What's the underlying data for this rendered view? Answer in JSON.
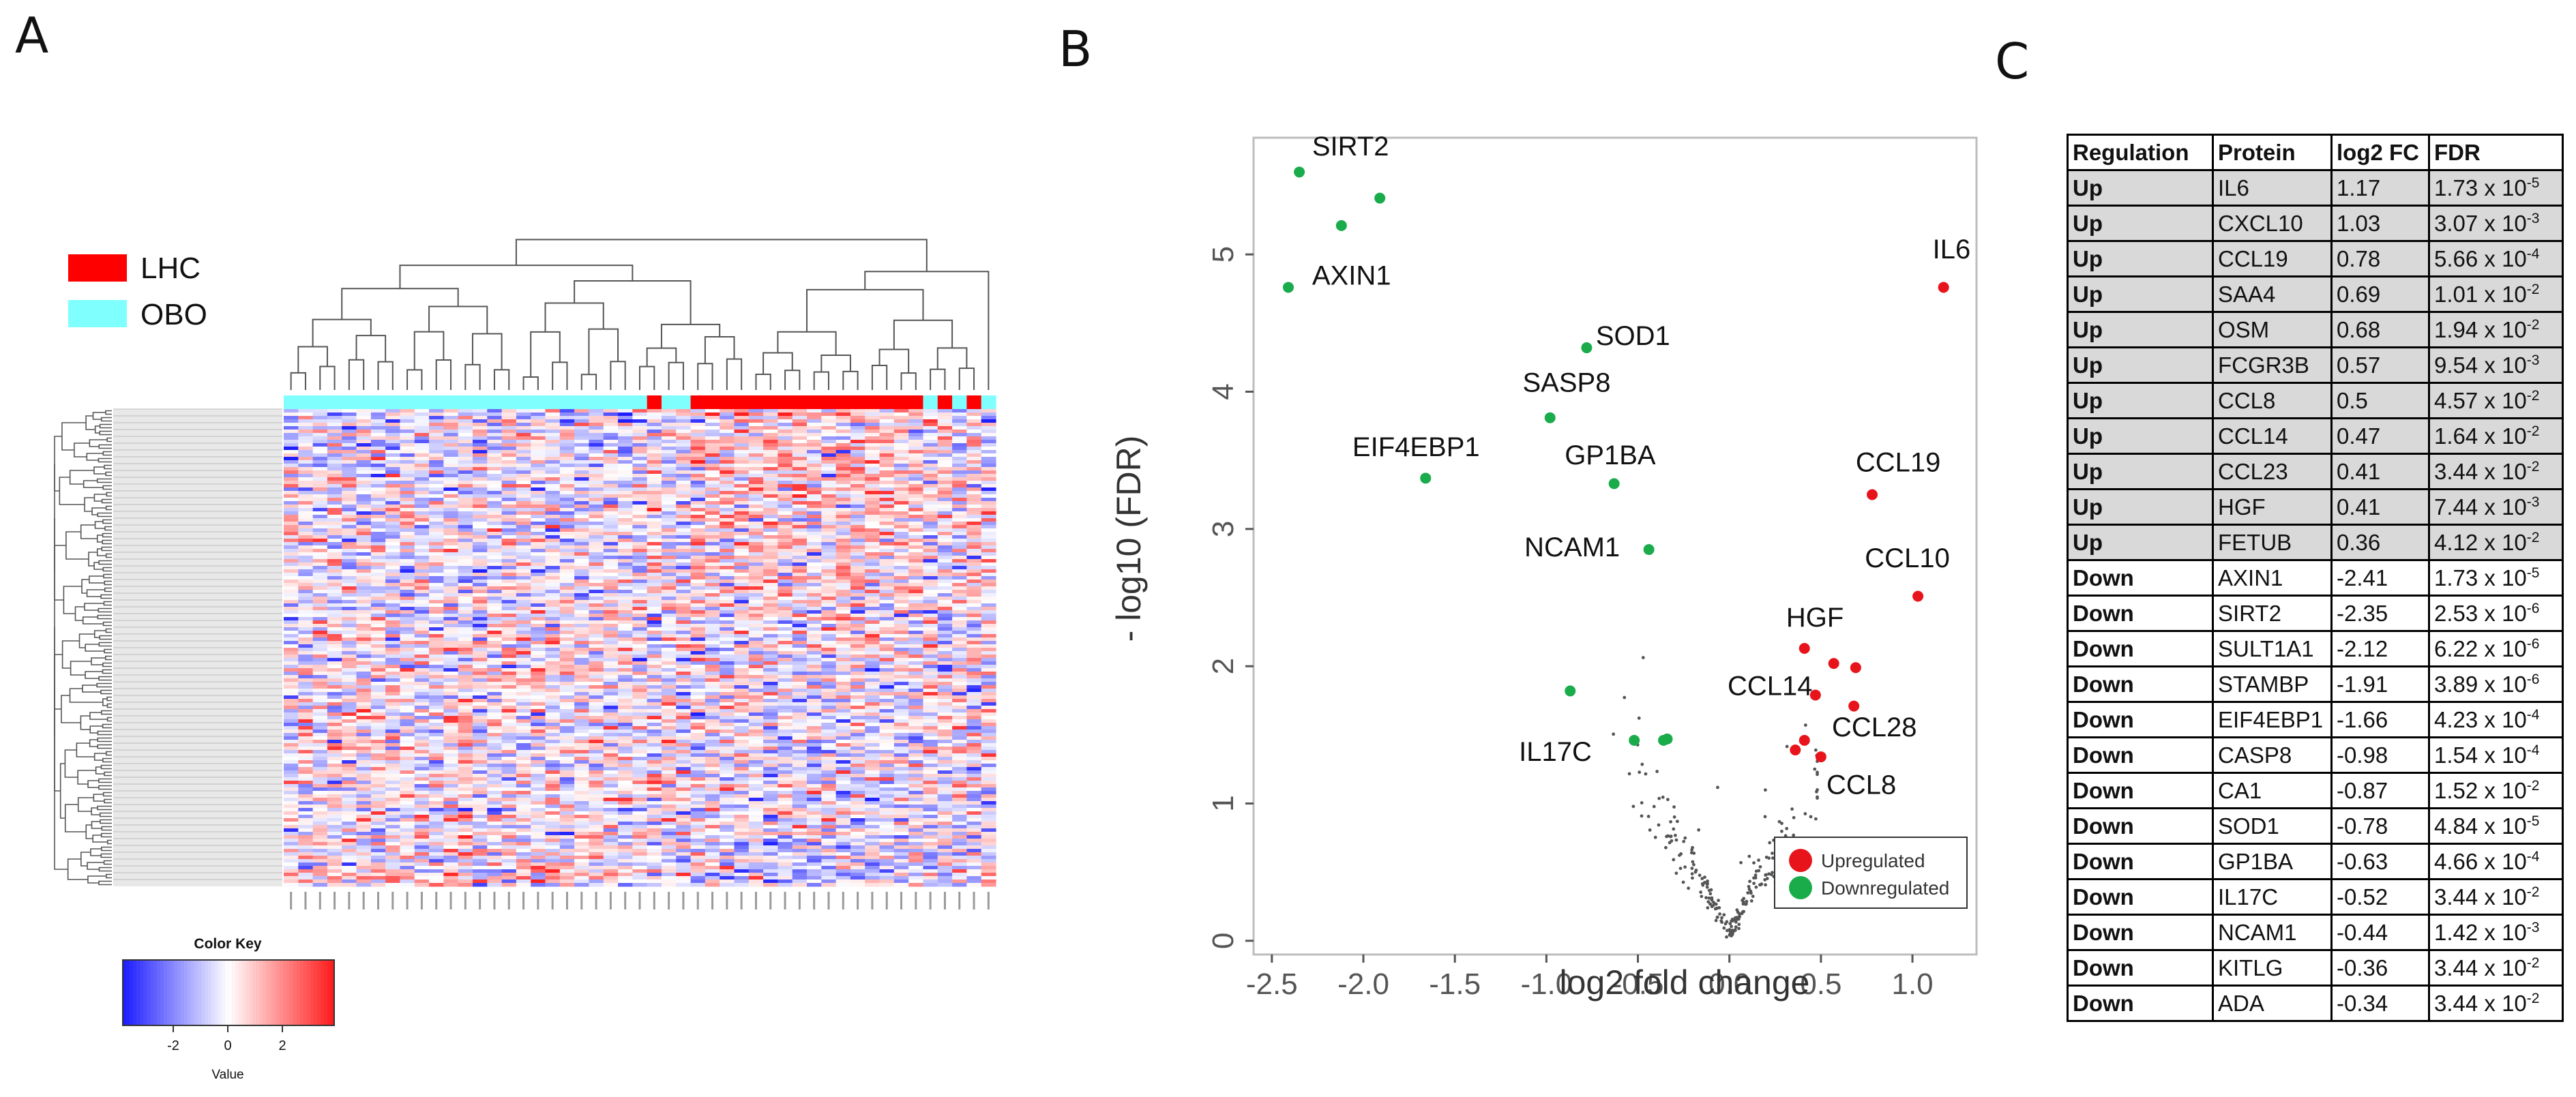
{
  "panels": {
    "a": "A",
    "b": "B",
    "c": "C"
  },
  "heatmap": {
    "legend": [
      {
        "label": "LHC",
        "color": "#ff0000"
      },
      {
        "label": "OBO",
        "color": "#80ffff"
      }
    ],
    "group_bar": [
      "OBO",
      "OBO",
      "OBO",
      "OBO",
      "OBO",
      "OBO",
      "OBO",
      "OBO",
      "OBO",
      "OBO",
      "OBO",
      "OBO",
      "OBO",
      "OBO",
      "OBO",
      "OBO",
      "OBO",
      "OBO",
      "OBO",
      "OBO",
      "OBO",
      "OBO",
      "OBO",
      "OBO",
      "OBO",
      "LHC",
      "OBO",
      "OBO",
      "LHC",
      "LHC",
      "LHC",
      "LHC",
      "LHC",
      "LHC",
      "LHC",
      "LHC",
      "LHC",
      "LHC",
      "LHC",
      "LHC",
      "LHC",
      "LHC",
      "LHC",
      "LHC",
      "OBO",
      "LHC",
      "OBO",
      "LHC",
      "OBO"
    ],
    "color_key": {
      "title": "Color Key",
      "xlabel": "Value",
      "ticks": [
        "-2",
        "0",
        "2"
      ]
    }
  },
  "chart_data": {
    "type": "scatter",
    "title": "",
    "xlabel": "log2 fold change",
    "ylabel": "- log10 (FDR)",
    "xlim": [
      -2.6,
      1.35
    ],
    "ylim": [
      -0.1,
      5.85
    ],
    "xticks": [
      "-2.5",
      "-2.0",
      "-1.5",
      "-1.0",
      "-0.5",
      "0.0",
      "0.5",
      "1.0"
    ],
    "xtick_values": [
      -2.5,
      -2.0,
      -1.5,
      -1.0,
      -0.5,
      0.0,
      0.5,
      1.0
    ],
    "yticks": [
      "0",
      "1",
      "2",
      "3",
      "4",
      "5"
    ],
    "ytick_values": [
      0,
      1,
      2,
      3,
      4,
      5
    ],
    "legend": [
      {
        "label": "Upregulated",
        "color": "#e8141c"
      },
      {
        "label": "Downregulated",
        "color": "#1aab4b"
      }
    ],
    "series": [
      {
        "name": "Upregulated",
        "color": "#e8141c",
        "points": [
          {
            "x": 1.17,
            "y": 4.76,
            "label": "IL6"
          },
          {
            "x": 1.03,
            "y": 2.51,
            "label": "CCL10"
          },
          {
            "x": 0.78,
            "y": 3.25,
            "label": "CCL19"
          },
          {
            "x": 0.69,
            "y": 1.99,
            "label": ""
          },
          {
            "x": 0.68,
            "y": 1.71,
            "label": ""
          },
          {
            "x": 0.57,
            "y": 2.02,
            "label": ""
          },
          {
            "x": 0.5,
            "y": 1.34,
            "label": "CCL8"
          },
          {
            "x": 0.47,
            "y": 1.79,
            "label": "CCL14"
          },
          {
            "x": 0.41,
            "y": 1.46,
            "label": "CCL28"
          },
          {
            "x": 0.41,
            "y": 2.13,
            "label": "HGF"
          },
          {
            "x": 0.36,
            "y": 1.39,
            "label": ""
          }
        ]
      },
      {
        "name": "Downregulated",
        "color": "#1aab4b",
        "points": [
          {
            "x": -2.41,
            "y": 4.76,
            "label": "AXIN1"
          },
          {
            "x": -2.35,
            "y": 5.6,
            "label": "SIRT2"
          },
          {
            "x": -2.12,
            "y": 5.21,
            "label": ""
          },
          {
            "x": -1.91,
            "y": 5.41,
            "label": ""
          },
          {
            "x": -1.66,
            "y": 3.37,
            "label": "EIF4EBP1"
          },
          {
            "x": -0.98,
            "y": 3.81,
            "label": "SASP8"
          },
          {
            "x": -0.87,
            "y": 1.82,
            "label": ""
          },
          {
            "x": -0.78,
            "y": 4.32,
            "label": "SOD1"
          },
          {
            "x": -0.63,
            "y": 3.33,
            "label": "GP1BA"
          },
          {
            "x": -0.52,
            "y": 1.46,
            "label": "IL17C"
          },
          {
            "x": -0.44,
            "y": 2.85,
            "label": "NCAM1"
          },
          {
            "x": -0.36,
            "y": 1.46,
            "label": ""
          },
          {
            "x": -0.34,
            "y": 1.47,
            "label": ""
          }
        ]
      }
    ]
  },
  "table": {
    "headers": [
      "Regulation",
      "Protein",
      "log2 FC",
      "FDR"
    ],
    "rows": [
      {
        "regulation": "Up",
        "protein": "IL6",
        "fc": "1.17",
        "fdr_base": "1.73 x 10",
        "fdr_exp": "-5"
      },
      {
        "regulation": "Up",
        "protein": "CXCL10",
        "fc": "1.03",
        "fdr_base": "3.07 x 10",
        "fdr_exp": "-3"
      },
      {
        "regulation": "Up",
        "protein": "CCL19",
        "fc": "0.78",
        "fdr_base": "5.66 x 10",
        "fdr_exp": "-4"
      },
      {
        "regulation": "Up",
        "protein": "SAA4",
        "fc": "0.69",
        "fdr_base": "1.01 x 10",
        "fdr_exp": "-2"
      },
      {
        "regulation": "Up",
        "protein": "OSM",
        "fc": "0.68",
        "fdr_base": "1.94 x 10",
        "fdr_exp": "-2"
      },
      {
        "regulation": "Up",
        "protein": "FCGR3B",
        "fc": "0.57",
        "fdr_base": "9.54 x 10",
        "fdr_exp": "-3"
      },
      {
        "regulation": "Up",
        "protein": "CCL8",
        "fc": "0.5",
        "fdr_base": "4.57 x 10",
        "fdr_exp": "-2"
      },
      {
        "regulation": "Up",
        "protein": "CCL14",
        "fc": "0.47",
        "fdr_base": "1.64 x 10",
        "fdr_exp": "-2"
      },
      {
        "regulation": "Up",
        "protein": "CCL23",
        "fc": "0.41",
        "fdr_base": "3.44 x 10",
        "fdr_exp": "-2"
      },
      {
        "regulation": "Up",
        "protein": "HGF",
        "fc": "0.41",
        "fdr_base": "7.44 x 10",
        "fdr_exp": "-3"
      },
      {
        "regulation": "Up",
        "protein": "FETUB",
        "fc": "0.36",
        "fdr_base": "4.12 x 10",
        "fdr_exp": "-2"
      },
      {
        "regulation": "Down",
        "protein": "AXIN1",
        "fc": "-2.41",
        "fdr_base": "1.73 x 10",
        "fdr_exp": "-5"
      },
      {
        "regulation": "Down",
        "protein": "SIRT2",
        "fc": "-2.35",
        "fdr_base": "2.53 x 10",
        "fdr_exp": "-6"
      },
      {
        "regulation": "Down",
        "protein": "SULT1A1",
        "fc": "-2.12",
        "fdr_base": "6.22 x 10",
        "fdr_exp": "-6"
      },
      {
        "regulation": "Down",
        "protein": "STAMBP",
        "fc": "-1.91",
        "fdr_base": "3.89 x 10",
        "fdr_exp": "-6"
      },
      {
        "regulation": "Down",
        "protein": "EIF4EBP1",
        "fc": "-1.66",
        "fdr_base": "4.23 x 10",
        "fdr_exp": "-4"
      },
      {
        "regulation": "Down",
        "protein": "CASP8",
        "fc": "-0.98",
        "fdr_base": "1.54 x 10",
        "fdr_exp": "-4"
      },
      {
        "regulation": "Down",
        "protein": "CA1",
        "fc": "-0.87",
        "fdr_base": "1.52 x 10",
        "fdr_exp": "-2"
      },
      {
        "regulation": "Down",
        "protein": "SOD1",
        "fc": "-0.78",
        "fdr_base": "4.84 x 10",
        "fdr_exp": "-5"
      },
      {
        "regulation": "Down",
        "protein": "GP1BA",
        "fc": "-0.63",
        "fdr_base": "4.66 x 10",
        "fdr_exp": "-4"
      },
      {
        "regulation": "Down",
        "protein": "IL17C",
        "fc": "-0.52",
        "fdr_base": "3.44 x 10",
        "fdr_exp": "-2"
      },
      {
        "regulation": "Down",
        "protein": "NCAM1",
        "fc": "-0.44",
        "fdr_base": "1.42 x 10",
        "fdr_exp": "-3"
      },
      {
        "regulation": "Down",
        "protein": "KITLG",
        "fc": "-0.36",
        "fdr_base": "3.44 x 10",
        "fdr_exp": "-2"
      },
      {
        "regulation": "Down",
        "protein": "ADA",
        "fc": "-0.34",
        "fdr_base": "3.44 x 10",
        "fdr_exp": "-2"
      }
    ]
  }
}
